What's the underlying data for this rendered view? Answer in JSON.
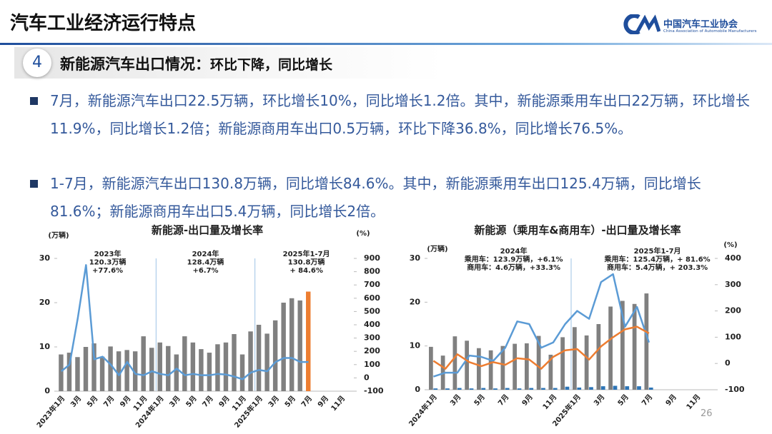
{
  "header": {
    "title": "汽车工业经济运行特点",
    "logo_name": "中国汽车工业协会",
    "logo_subtitle": "China Association of Automobile Manufacturers"
  },
  "section": {
    "number": "4",
    "title": "新能源汽车出口情况：",
    "subtitle": "环比下降，同比增长"
  },
  "bullets": [
    "7月，新能源汽车出口22.5万辆，环比增长10%，同比增长1.2倍。其中，新能源乘用车出口22万辆，环比增长11.9%，同比增长1.2倍；新能源商用车出口0.5万辆，环比下降36.8%，同比增长76.5%。",
    "1-7月，新能源汽车出口130.8万辆，同比增长84.6%。其中，新能源乘用车出口125.4万辆，同比增长81.6%；新能源商用车出口5.4万辆，同比增长2倍。"
  ],
  "page_number": "26",
  "chart_data": [
    {
      "type": "bar",
      "title": "新能源-出口量及增长率",
      "y_label": "(万辆)",
      "y2_label": "(%)",
      "categories": [
        "2023年1月",
        null,
        "3月",
        null,
        "5月",
        null,
        "7月",
        null,
        "9月",
        null,
        "11月",
        null,
        "2024年1月",
        null,
        "3月",
        null,
        "5月",
        null,
        "7月",
        null,
        "9月",
        null,
        "11月",
        null,
        "2025年1月",
        null,
        "3月",
        null,
        "5月",
        null,
        "7月",
        null,
        "9月",
        null,
        "11月",
        null
      ],
      "series": [
        {
          "type": "bar",
          "color": "#808080",
          "highlight_last": "#ed7d31",
          "values": [
            8.3,
            8.7,
            7.7,
            10.0,
            10.8,
            7.8,
            10.1,
            9.0,
            9.3,
            9.0,
            12.4,
            9.8,
            11.0,
            10.2,
            8.3,
            12.4,
            11.0,
            9.5,
            8.7,
            10.6,
            11.0,
            12.9,
            8.3,
            13.5,
            15.0,
            13.0,
            16.0,
            20.0,
            21.0,
            20.5,
            22.5,
            null,
            null,
            null,
            null,
            null
          ]
        },
        {
          "type": "line",
          "axis": "y2",
          "color": "#5b9bd5",
          "values": [
            50,
            100,
            450,
            850,
            140,
            160,
            100,
            20,
            120,
            30,
            20,
            50,
            30,
            20,
            70,
            20,
            30,
            20,
            20,
            30,
            25,
            10,
            -10,
            40,
            60,
            50,
            120,
            150,
            150,
            120,
            120,
            null,
            null,
            null,
            null,
            null
          ]
        }
      ],
      "ylim": [
        0,
        30
      ],
      "yticks": [
        0,
        10,
        20,
        30
      ],
      "y2lim": [
        -100,
        900
      ],
      "y2ticks": [
        -100,
        0,
        100,
        200,
        300,
        400,
        500,
        600,
        700,
        800,
        900
      ],
      "annotations": [
        [
          "2023年",
          "120.3万辆",
          "+77.6%"
        ],
        [
          "2024年",
          "128.4万辆",
          "+6.7%"
        ],
        [
          "2025年1-7月",
          "130.8万辆",
          "+ 84.6%"
        ]
      ]
    },
    {
      "type": "bar",
      "title": "新能源（乘用车&商用车）-出口量及增长率",
      "y_label": "(万辆)",
      "y2_label": "(%)",
      "categories": [
        "2024年1月",
        null,
        "3月",
        null,
        "5月",
        null,
        "7月",
        null,
        "9月",
        null,
        "11月",
        null,
        "2025年1月",
        null,
        "3月",
        null,
        "5月",
        null,
        "7月",
        null,
        "9月",
        null,
        "11月",
        null
      ],
      "series": [
        {
          "type": "bar",
          "color": "#808080",
          "values": [
            9.8,
            7.8,
            12.2,
            11.2,
            9.5,
            9.0,
            10.0,
            10.5,
            10.6,
            12.3,
            8.0,
            12.0,
            14.3,
            12.4,
            15.0,
            19.0,
            20.3,
            19.6,
            22.0,
            null,
            null,
            null,
            null,
            null
          ]
        },
        {
          "type": "bar",
          "color": "#2e75b6",
          "values": [
            0.3,
            0.3,
            0.4,
            0.3,
            0.4,
            0.3,
            0.4,
            0.3,
            0.4,
            0.4,
            0.4,
            0.7,
            0.5,
            0.6,
            0.8,
            0.9,
            0.8,
            0.8,
            0.5,
            null,
            null,
            null,
            null,
            null
          ]
        },
        {
          "type": "line",
          "axis": "y2",
          "color": "#5b9bd5",
          "values": [
            -50,
            -35,
            -35,
            30,
            25,
            10,
            60,
            160,
            150,
            60,
            80,
            150,
            200,
            170,
            310,
            340,
            140,
            215,
            80,
            null,
            null,
            null,
            null,
            null
          ]
        },
        {
          "type": "line",
          "axis": "y2",
          "color": "#ed7d31",
          "values": [
            10,
            -20,
            35,
            5,
            -10,
            5,
            -5,
            20,
            15,
            -20,
            25,
            50,
            55,
            15,
            65,
            100,
            130,
            140,
            115,
            null,
            null,
            null,
            null,
            null
          ]
        }
      ],
      "ylim": [
        0,
        30
      ],
      "yticks": [
        0,
        10,
        20,
        30
      ],
      "y2lim": [
        -100,
        400
      ],
      "y2ticks": [
        -100,
        0,
        100,
        200,
        300,
        400
      ],
      "annotations": [
        [
          "2024年",
          "乘用车：123.9万辆，+6.1%",
          "商用车：4.6万辆，+33.3%"
        ],
        [
          "2025年1-7月",
          "乘用车：125.4万辆，+ 81.6%",
          "商用车：5.4万辆，+ 203.3%"
        ]
      ]
    }
  ]
}
